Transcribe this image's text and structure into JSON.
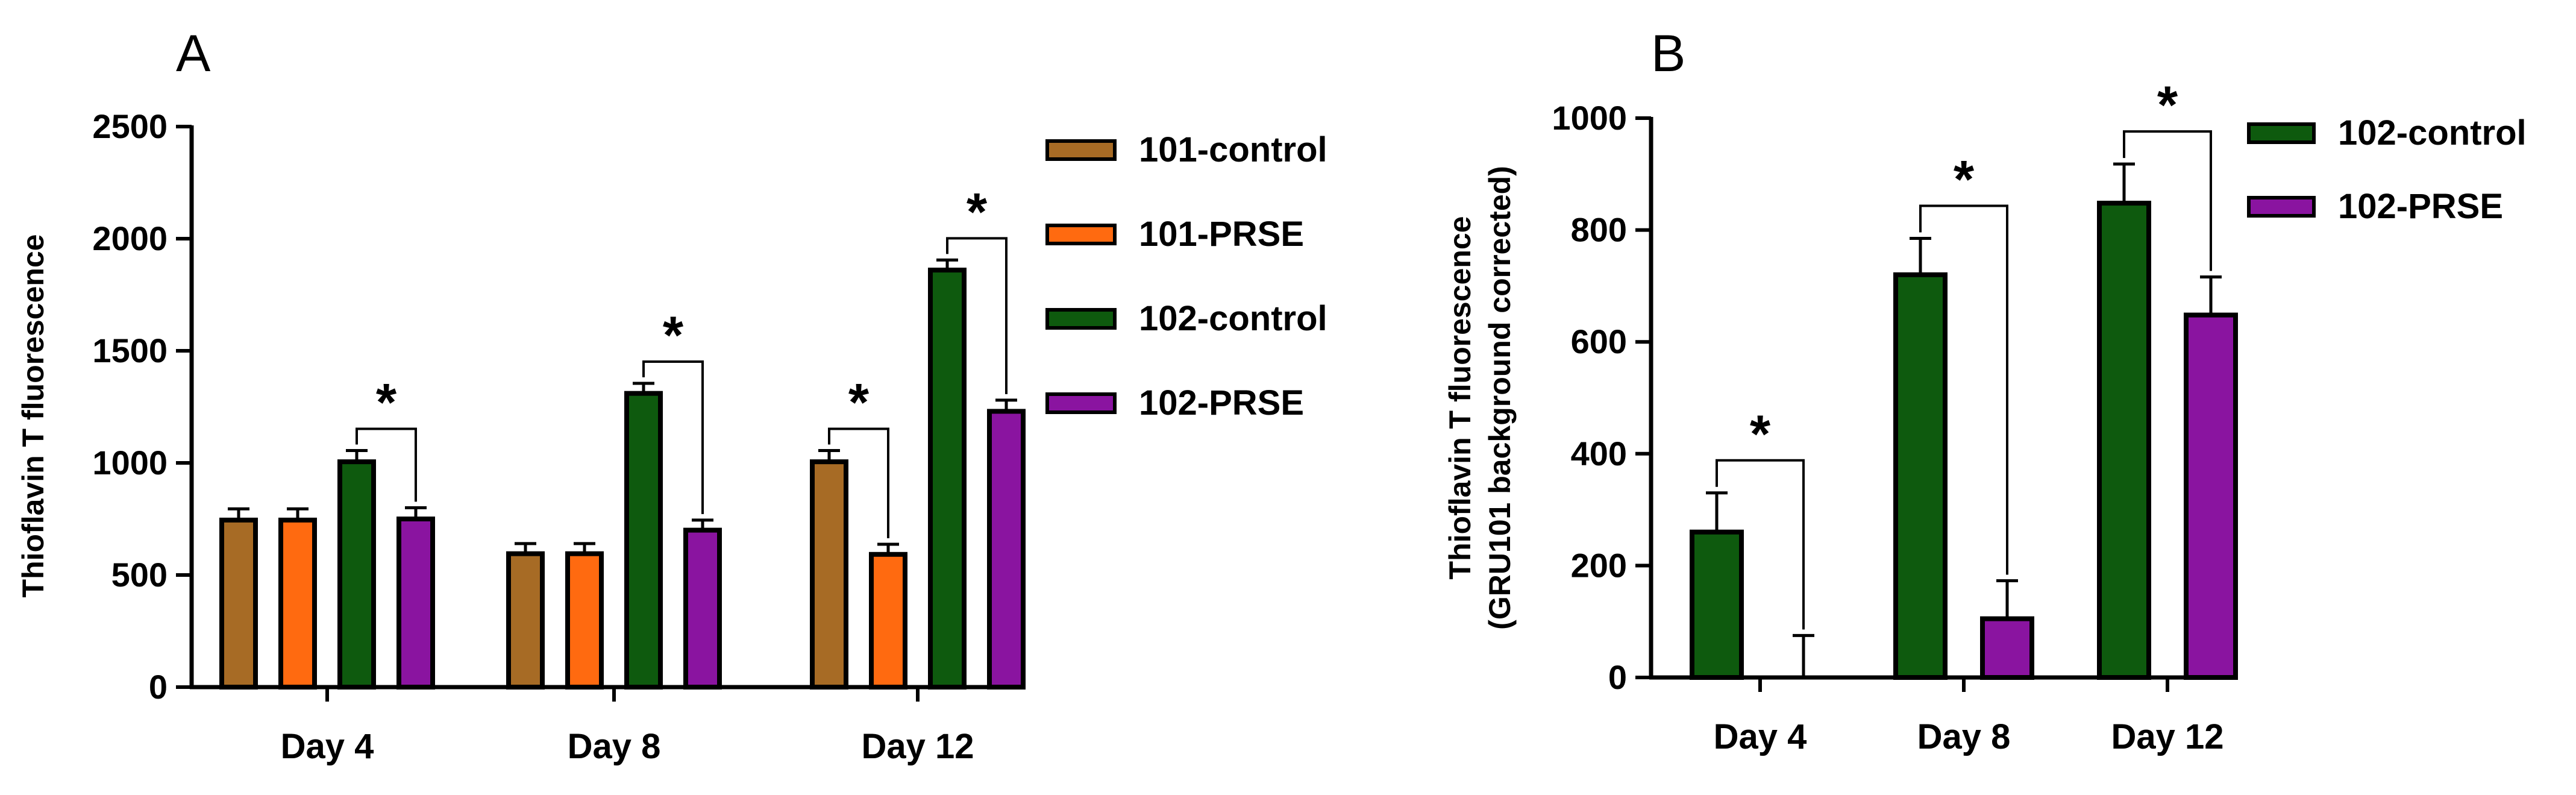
{
  "chart_data": [
    {
      "panel": "A",
      "type": "bar",
      "ylabel": "Thioflavin T fluorescence",
      "xlabel": "",
      "ylim": [
        0,
        2500
      ],
      "yticks": [
        0,
        500,
        1000,
        1500,
        2000,
        2500
      ],
      "categories": [
        "Day 4",
        "Day 8",
        "Day 12"
      ],
      "series": [
        {
          "name": "101-control",
          "color": "#A76B25",
          "values": [
            745,
            595,
            1005
          ],
          "errors": [
            50,
            45,
            50
          ]
        },
        {
          "name": "101-PRSE",
          "color": "#FF6A10",
          "values": [
            745,
            595,
            592
          ],
          "errors": [
            50,
            45,
            45
          ]
        },
        {
          "name": "102-control",
          "color": "#0E5A0E",
          "values": [
            1005,
            1310,
            1860
          ],
          "errors": [
            50,
            45,
            45
          ]
        },
        {
          "name": "102-PRSE",
          "color": "#8A14A0",
          "values": [
            750,
            700,
            1230
          ],
          "errors": [
            50,
            45,
            50
          ]
        }
      ],
      "significance": [
        {
          "category": "Day 4",
          "from_series": 2,
          "to_series": 3,
          "label": "*"
        },
        {
          "category": "Day 8",
          "from_series": 2,
          "to_series": 3,
          "label": "*"
        },
        {
          "category": "Day 12",
          "from_series": 0,
          "to_series": 1,
          "label": "*"
        },
        {
          "category": "Day 12",
          "from_series": 2,
          "to_series": 3,
          "label": "*"
        }
      ],
      "legend": "right"
    },
    {
      "panel": "B",
      "type": "bar",
      "ylabel": "Thioflavin T fluorescence",
      "ylabel2": "(GRU101 background corrected)",
      "xlabel": "",
      "ylim": [
        0,
        1000
      ],
      "yticks": [
        0,
        200,
        400,
        600,
        800,
        1000
      ],
      "categories": [
        "Day 4",
        "Day 8",
        "Day 12"
      ],
      "series": [
        {
          "name": "102-control",
          "color": "#0E5A0E",
          "values": [
            260,
            720,
            848
          ],
          "errors": [
            70,
            65,
            70
          ]
        },
        {
          "name": "102-PRSE",
          "color": "#8A14A0",
          "values": [
            0,
            105,
            648
          ],
          "errors": [
            75,
            68,
            68
          ]
        }
      ],
      "significance": [
        {
          "category": "Day 4",
          "from_series": 0,
          "to_series": 1,
          "label": "*"
        },
        {
          "category": "Day 8",
          "from_series": 0,
          "to_series": 1,
          "label": "*"
        },
        {
          "category": "Day 12",
          "from_series": 0,
          "to_series": 1,
          "label": "*"
        }
      ],
      "legend": "right"
    }
  ]
}
